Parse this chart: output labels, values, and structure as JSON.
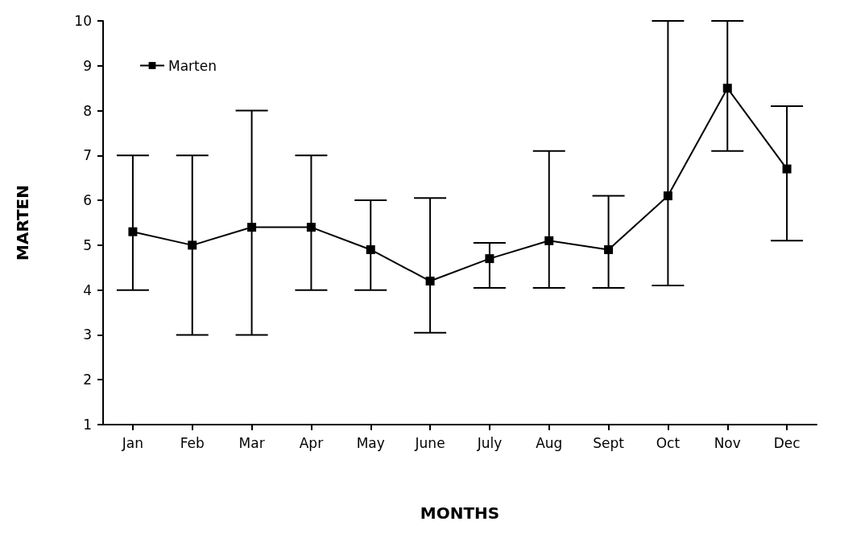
{
  "chart_data": {
    "type": "line",
    "xlabel": "MONTHS",
    "ylabel": "MARTEN",
    "categories": [
      "Jan",
      "Feb",
      "Mar",
      "Apr",
      "May",
      "June",
      "July",
      "Aug",
      "Sept",
      "Oct",
      "Nov",
      "Dec"
    ],
    "series": [
      {
        "name": "Marten",
        "color": "#000000",
        "values": [
          5.3,
          5.0,
          5.4,
          5.4,
          4.9,
          4.2,
          4.7,
          5.1,
          4.9,
          6.1,
          8.5,
          6.7
        ],
        "errors": [
          [
            4,
            7
          ],
          [
            3,
            7
          ],
          [
            3,
            8
          ],
          [
            4,
            7
          ],
          [
            4,
            6
          ],
          [
            3.05,
            6.05
          ],
          [
            4.05,
            5.05
          ],
          [
            4.05,
            7.1
          ],
          [
            4.05,
            6.1
          ],
          [
            4.1,
            10
          ],
          [
            7.1,
            10
          ],
          [
            5.1,
            8.1
          ]
        ]
      }
    ],
    "ylim": [
      1,
      10
    ],
    "yticks": [
      1,
      2,
      3,
      4,
      5,
      6,
      7,
      8,
      9,
      10
    ],
    "grid": false,
    "legend": "top left",
    "marker": "square",
    "line_style": "solid"
  }
}
